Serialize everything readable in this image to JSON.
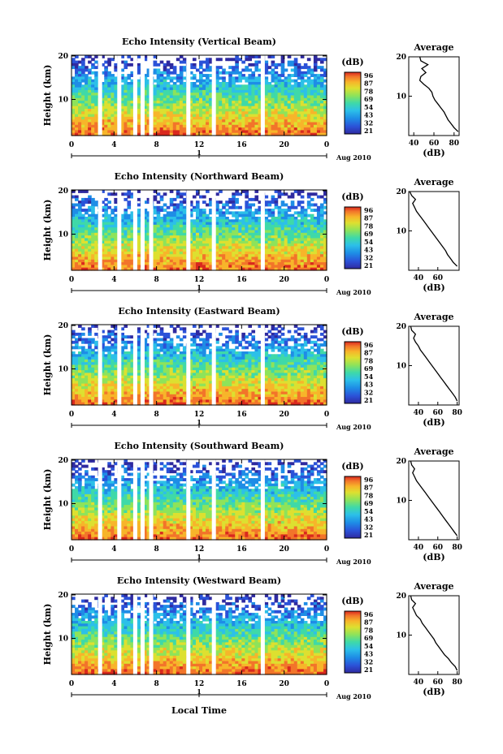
{
  "chart_data": {
    "type": "heatmap",
    "colorbar": {
      "unit_label": "(dB)",
      "tick_labels": [
        "96",
        "87",
        "78",
        "69",
        "54",
        "43",
        "32",
        "21"
      ],
      "colors": [
        "#2f2aa0",
        "#2b52d8",
        "#1e8de6",
        "#2cc0e8",
        "#3fd9a8",
        "#8ee35a",
        "#dde030",
        "#f7b52a",
        "#f2742a",
        "#d9281e"
      ]
    },
    "x_tick_labels": [
      "0",
      "4",
      "8",
      "12",
      "16",
      "20",
      "0"
    ],
    "date_tick_label": "1",
    "date_label": "Aug 2010",
    "xlabel": "Local Time",
    "ylabel": "Height (km)",
    "y_tick_labels": [
      "20",
      "10"
    ],
    "gaps_hours": [
      2.5,
      4.3,
      5.8,
      6.5,
      7.3,
      10.8,
      13.2,
      17.8
    ],
    "panels": [
      {
        "title": "Echo Intensity (Vertical Beam)",
        "avg_title": "Average",
        "avg_xlabel": "(dB)",
        "avg_x_tick_labels": [
          "40",
          "60",
          "80"
        ],
        "avg_xlim": [
          35,
          85
        ],
        "avg_y_tick_labels": [
          "20",
          "10"
        ],
        "avg_profile": {
          "height_km": [
            1,
            2,
            3,
            4,
            5,
            6,
            7,
            8,
            9,
            10,
            11,
            12,
            13,
            14,
            15,
            16,
            17,
            18,
            19,
            20
          ],
          "db": [
            84,
            80,
            77,
            74,
            72,
            70,
            67,
            64,
            61,
            59,
            58,
            55,
            50,
            46,
            47,
            52,
            48,
            54,
            47,
            46
          ]
        }
      },
      {
        "title": "Echo Intensity (Northward Beam)",
        "avg_title": "Average",
        "avg_xlabel": "(dB)",
        "avg_x_tick_labels": [
          "40",
          "60"
        ],
        "avg_xlim": [
          30,
          82
        ],
        "avg_y_tick_labels": [
          "20",
          "10"
        ],
        "avg_profile": {
          "height_km": [
            1,
            2,
            3,
            4,
            5,
            6,
            7,
            8,
            9,
            10,
            11,
            12,
            13,
            14,
            15,
            16,
            17,
            18,
            19,
            20
          ],
          "db": [
            80,
            76,
            73,
            70,
            68,
            65,
            62,
            59,
            56,
            53,
            50,
            47,
            44,
            41,
            38,
            36,
            34,
            37,
            33,
            31
          ]
        }
      },
      {
        "title": "Echo Intensity (Eastward Beam)",
        "avg_title": "Average",
        "avg_xlabel": "(dB)",
        "avg_x_tick_labels": [
          "40",
          "60",
          "80"
        ],
        "avg_xlim": [
          30,
          82
        ],
        "avg_y_tick_labels": [
          "20",
          "10"
        ],
        "avg_profile": {
          "height_km": [
            1,
            2,
            3,
            4,
            5,
            6,
            7,
            8,
            9,
            10,
            11,
            12,
            13,
            14,
            15,
            16,
            17,
            18,
            19,
            20
          ],
          "db": [
            80,
            78,
            75,
            72,
            69,
            66,
            63,
            60,
            57,
            54,
            51,
            48,
            45,
            42,
            40,
            37,
            35,
            37,
            33,
            32
          ]
        }
      },
      {
        "title": "Echo Intensity (Southward Beam)",
        "avg_title": "Average",
        "avg_xlabel": "(dB)",
        "avg_x_tick_labels": [
          "40",
          "60",
          "80"
        ],
        "avg_xlim": [
          30,
          82
        ],
        "avg_y_tick_labels": [
          "20",
          "10"
        ],
        "avg_profile": {
          "height_km": [
            1,
            2,
            3,
            4,
            5,
            6,
            7,
            8,
            9,
            10,
            11,
            12,
            13,
            14,
            15,
            16,
            17,
            18,
            19,
            20
          ],
          "db": [
            80,
            77,
            74,
            71,
            68,
            65,
            62,
            59,
            56,
            53,
            50,
            47,
            44,
            41,
            38,
            36,
            34,
            36,
            33,
            32
          ]
        }
      },
      {
        "title": "Echo Intensity (Westward Beam)",
        "avg_title": "Average",
        "avg_xlabel": "(dB)",
        "avg_x_tick_labels": [
          "40",
          "60",
          "80"
        ],
        "avg_xlim": [
          30,
          82
        ],
        "avg_y_tick_labels": [
          "20",
          "10"
        ],
        "avg_profile": {
          "height_km": [
            1,
            2,
            3,
            4,
            5,
            6,
            7,
            8,
            9,
            10,
            11,
            12,
            13,
            14,
            15,
            16,
            17,
            18,
            19,
            20
          ],
          "db": [
            80,
            78,
            74,
            71,
            67,
            64,
            61,
            58,
            56,
            53,
            50,
            47,
            44,
            42,
            38,
            36,
            34,
            37,
            33,
            32
          ]
        }
      }
    ]
  }
}
